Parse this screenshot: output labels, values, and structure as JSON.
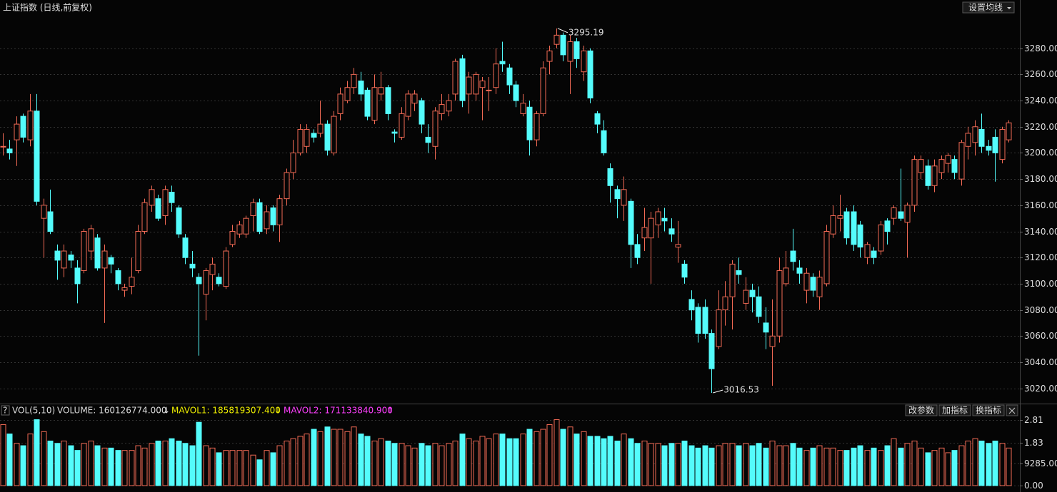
{
  "header": {
    "title": "上证指数 (日线,前复权)",
    "button": "设置均线"
  },
  "indicator_bar": {
    "help": "?",
    "name": "VOL(5,10)",
    "volume": "VOLUME: 160126774.000",
    "volume_arrow": "↓",
    "mavol1": "MAVOL1: 185819307.400",
    "mavol1_arrow": "↓",
    "mavol2": "MAVOL2: 171133840.900",
    "mavol2_arrow": "↑",
    "buttons": [
      "改参数",
      "加指标",
      "换指标"
    ]
  },
  "chart_data": {
    "type": "candlestick",
    "up_color": "#f26a55",
    "down_color": "#54fcfc",
    "grid": true,
    "open": [
      3205,
      3203,
      3210,
      3228,
      3210,
      3232,
      3150,
      3155,
      3125,
      3112,
      3122,
      3112,
      3110,
      3125,
      3135,
      3112,
      3120,
      3110,
      3095,
      3098,
      3110,
      3140,
      3160,
      3165,
      3152,
      3170,
      3158,
      3135,
      3115,
      3105,
      3092,
      3107,
      3105,
      3098,
      3130,
      3138,
      3138,
      3152,
      3162,
      3142,
      3158,
      3145,
      3165,
      3185,
      3200,
      3205,
      3215,
      3215,
      3222,
      3200,
      3230,
      3240,
      3250,
      3255,
      3248,
      3225,
      3245,
      3250,
      3216,
      3212,
      3228,
      3238,
      3240,
      3212,
      3205,
      3230,
      3232,
      3245,
      3272,
      3245,
      3245,
      3250,
      3248,
      3250,
      3270,
      3265,
      3252,
      3230,
      3235,
      3210,
      3230,
      3270,
      3283,
      3290,
      3270,
      3285,
      3262,
      3278,
      3230,
      3217,
      3188,
      3172,
      3160,
      3163,
      3130,
      3135,
      3135,
      3145,
      3150,
      3142,
      3128,
      3115,
      3088,
      3082,
      3082,
      3062,
      3052,
      3080,
      3090,
      3110,
      3085,
      3095,
      3090,
      3070,
      3052,
      3060,
      3100,
      3125,
      3112,
      3095,
      3105,
      3090,
      3100,
      3138,
      3150,
      3155,
      3155,
      3145,
      3120,
      3125,
      3125,
      3148,
      3150,
      3155,
      3147,
      3160,
      3185,
      3190,
      3175,
      3185,
      3192,
      3195,
      3180,
      3205,
      3208,
      3218,
      3205,
      3212,
      3195,
      3210
    ],
    "high": [
      3215,
      3210,
      3228,
      3230,
      3245,
      3245,
      3165,
      3172,
      3130,
      3130,
      3125,
      3118,
      3142,
      3145,
      3138,
      3130,
      3122,
      3112,
      3100,
      3120,
      3145,
      3165,
      3175,
      3168,
      3175,
      3175,
      3160,
      3138,
      3125,
      3108,
      3112,
      3120,
      3108,
      3128,
      3145,
      3148,
      3152,
      3165,
      3165,
      3160,
      3160,
      3168,
      3188,
      3210,
      3222,
      3222,
      3218,
      3240,
      3225,
      3232,
      3250,
      3255,
      3265,
      3262,
      3250,
      3260,
      3262,
      3252,
      3218,
      3235,
      3248,
      3248,
      3242,
      3222,
      3235,
      3245,
      3245,
      3272,
      3275,
      3262,
      3262,
      3258,
      3258,
      3280,
      3285,
      3268,
      3255,
      3245,
      3240,
      3232,
      3270,
      3282,
      3295.19,
      3292,
      3290,
      3288,
      3282,
      3280,
      3232,
      3225,
      3192,
      3175,
      3182,
      3165,
      3138,
      3158,
      3155,
      3158,
      3158,
      3150,
      3148,
      3118,
      3095,
      3085,
      3088,
      3065,
      3095,
      3102,
      3118,
      3120,
      3105,
      3100,
      3098,
      3082,
      3088,
      3120,
      3125,
      3142,
      3118,
      3112,
      3108,
      3110,
      3145,
      3160,
      3168,
      3158,
      3160,
      3148,
      3132,
      3128,
      3148,
      3150,
      3160,
      3188,
      3162,
      3198,
      3198,
      3195,
      3195,
      3198,
      3200,
      3198,
      3210,
      3220,
      3225,
      3230,
      3210,
      3218,
      3220,
      3225
    ],
    "low": [
      3198,
      3195,
      3190,
      3208,
      3205,
      3160,
      3120,
      3138,
      3103,
      3105,
      3112,
      3085,
      3108,
      3118,
      3110,
      3070,
      3108,
      3095,
      3090,
      3092,
      3108,
      3138,
      3155,
      3148,
      3145,
      3155,
      3135,
      3115,
      3105,
      3045,
      3072,
      3095,
      3098,
      3096,
      3128,
      3135,
      3135,
      3140,
      3138,
      3138,
      3140,
      3132,
      3160,
      3180,
      3198,
      3200,
      3208,
      3212,
      3198,
      3198,
      3225,
      3238,
      3245,
      3240,
      3225,
      3222,
      3240,
      3225,
      3208,
      3210,
      3225,
      3232,
      3215,
      3200,
      3195,
      3225,
      3228,
      3240,
      3235,
      3230,
      3240,
      3225,
      3232,
      3245,
      3262,
      3245,
      3235,
      3228,
      3198,
      3205,
      3228,
      3260,
      3280,
      3270,
      3245,
      3265,
      3255,
      3238,
      3215,
      3198,
      3162,
      3150,
      3148,
      3112,
      3115,
      3125,
      3100,
      3135,
      3140,
      3132,
      3116,
      3100,
      3072,
      3055,
      3058,
      3016.53,
      3050,
      3068,
      3065,
      3100,
      3080,
      3078,
      3070,
      3050,
      3022,
      3055,
      3098,
      3110,
      3100,
      3085,
      3090,
      3080,
      3098,
      3135,
      3140,
      3130,
      3125,
      3120,
      3115,
      3115,
      3122,
      3130,
      3145,
      3148,
      3120,
      3155,
      3180,
      3172,
      3170,
      3180,
      3185,
      3180,
      3175,
      3195,
      3198,
      3200,
      3198,
      3178,
      3192,
      3208
    ],
    "close": [
      3205,
      3200,
      3222,
      3212,
      3232,
      3163,
      3160,
      3140,
      3118,
      3125,
      3118,
      3100,
      3140,
      3142,
      3112,
      3125,
      3115,
      3100,
      3097,
      3105,
      3140,
      3162,
      3172,
      3150,
      3172,
      3162,
      3138,
      3120,
      3112,
      3100,
      3110,
      3115,
      3100,
      3125,
      3140,
      3145,
      3150,
      3162,
      3140,
      3155,
      3145,
      3165,
      3185,
      3200,
      3218,
      3218,
      3212,
      3222,
      3202,
      3228,
      3245,
      3250,
      3260,
      3245,
      3228,
      3250,
      3250,
      3230,
      3215,
      3230,
      3245,
      3245,
      3222,
      3208,
      3232,
      3237,
      3240,
      3270,
      3240,
      3258,
      3260,
      3255,
      3248,
      3268,
      3268,
      3252,
      3240,
      3238,
      3210,
      3230,
      3265,
      3278,
      3290,
      3275,
      3285,
      3272,
      3278,
      3242,
      3222,
      3200,
      3175,
      3165,
      3172,
      3130,
      3120,
      3143,
      3150,
      3155,
      3148,
      3138,
      3130,
      3105,
      3080,
      3062,
      3062,
      3035,
      3080,
      3090,
      3115,
      3107,
      3095,
      3090,
      3075,
      3063,
      3060,
      3110,
      3112,
      3117,
      3108,
      3108,
      3095,
      3105,
      3140,
      3152,
      3152,
      3135,
      3130,
      3128,
      3130,
      3120,
      3145,
      3140,
      3158,
      3150,
      3160,
      3195,
      3195,
      3175,
      3190,
      3195,
      3198,
      3185,
      3208,
      3215,
      3220,
      3205,
      3202,
      3200,
      3218,
      3223
    ],
    "volume": [
      2.6,
      2.2,
      1.8,
      1.7,
      2.2,
      2.81,
      2.3,
      1.9,
      1.8,
      1.9,
      1.7,
      1.5,
      1.8,
      1.9,
      1.7,
      1.6,
      1.6,
      1.5,
      1.5,
      1.5,
      1.7,
      1.6,
      1.8,
      1.9,
      1.9,
      2.0,
      1.9,
      1.8,
      1.7,
      2.7,
      1.7,
      1.6,
      1.4,
      1.5,
      1.5,
      1.5,
      1.5,
      1.3,
      1.1,
      1.5,
      1.4,
      1.7,
      1.9,
      2.0,
      2.1,
      2.2,
      2.4,
      2.3,
      2.5,
      2.4,
      2.4,
      2.3,
      2.5,
      2.2,
      2.1,
      1.9,
      2.0,
      1.9,
      1.8,
      1.8,
      1.7,
      1.6,
      1.8,
      1.7,
      1.8,
      1.7,
      1.8,
      1.9,
      2.2,
      2.0,
      1.9,
      2.1,
      2.0,
      2.2,
      2.2,
      2.0,
      2.0,
      2.2,
      2.4,
      2.3,
      2.4,
      2.6,
      2.81,
      2.4,
      2.5,
      2.2,
      2.3,
      2.1,
      2.1,
      2.0,
      2.1,
      1.9,
      2.2,
      2.0,
      1.8,
      1.9,
      1.8,
      1.8,
      1.7,
      1.8,
      1.8,
      1.9,
      1.7,
      1.6,
      1.7,
      1.6,
      1.7,
      1.8,
      1.8,
      1.7,
      1.8,
      1.7,
      1.8,
      1.6,
      1.9,
      1.7,
      1.7,
      1.8,
      1.6,
      1.5,
      1.6,
      1.7,
      1.6,
      1.6,
      1.5,
      1.5,
      1.6,
      1.7,
      1.5,
      1.6,
      1.5,
      1.7,
      2.0,
      1.6,
      1.8,
      1.9,
      1.6,
      1.4,
      1.5,
      1.6,
      1.4,
      1.5,
      1.7,
      1.9,
      2.0,
      1.9,
      1.8,
      1.9,
      1.8,
      1.6
    ],
    "ylim": [
      3010,
      3306
    ],
    "yticks": [
      {
        "value": 3020,
        "label": "3020.00"
      },
      {
        "value": 3040,
        "label": "3040.00"
      },
      {
        "value": 3060,
        "label": "3060.00"
      },
      {
        "value": 3080,
        "label": "3080.00"
      },
      {
        "value": 3100,
        "label": "3100.00"
      },
      {
        "value": 3120,
        "label": "3120.00"
      },
      {
        "value": 3140,
        "label": "3140.00"
      },
      {
        "value": 3160,
        "label": "3160.00"
      },
      {
        "value": 3180,
        "label": "3180.00"
      },
      {
        "value": 3200,
        "label": "3200.00"
      },
      {
        "value": 3220,
        "label": "3220.00"
      },
      {
        "value": 3240,
        "label": "3240.00"
      },
      {
        "value": 3260,
        "label": "3260.00"
      },
      {
        "value": 3280,
        "label": "3280.00"
      }
    ],
    "vol_ylim": [
      0,
      3.1
    ],
    "vol_yticks": [
      {
        "value": 0,
        "label": "0.00"
      },
      {
        "value": 0.9285,
        "label": "9285.00"
      },
      {
        "value": 1.83,
        "label": "1.83"
      },
      {
        "value": 2.81,
        "label": "2.81"
      }
    ],
    "max_label": "3295.19",
    "min_label": "3016.53"
  }
}
